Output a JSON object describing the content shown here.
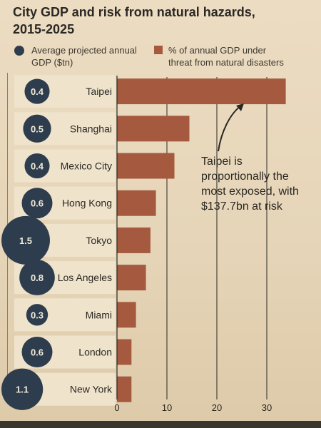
{
  "chart_data": {
    "type": "bar",
    "title": "City GDP and risk from natural hazards,",
    "subtitle": "2015-2025",
    "legend": {
      "gdp": "Average projected annual GDP ($tn)",
      "risk": "% of  annual GDP under threat from natural disasters"
    },
    "categories": [
      "Taipei",
      "Shanghai",
      "Mexico City",
      "Hong Kong",
      "Tokyo",
      "Los Angeles",
      "Miami",
      "London",
      "New York"
    ],
    "gdp_labels": [
      "0.4",
      "0.5",
      "0.4",
      "0.6",
      "1.5",
      "0.8",
      "0.3",
      "0.6",
      "1.1"
    ],
    "gdp_values": [
      0.4,
      0.5,
      0.4,
      0.6,
      1.5,
      0.8,
      0.3,
      0.6,
      1.1
    ],
    "series": [
      {
        "values": [
          33.8,
          14.5,
          11.5,
          7.8,
          6.7,
          5.8,
          3.8,
          2.9,
          2.9
        ]
      }
    ],
    "xlim": [
      0,
      33.8
    ],
    "xticks": [
      "0",
      "10",
      "20",
      "30"
    ],
    "grid": true,
    "annotation": "Taipei is proportionally the most exposed, with $137.7bn at risk",
    "colors": {
      "bar": "#a55a3f",
      "bubble": "#2e3d4e",
      "bubble_text": "#f2ead9"
    }
  }
}
